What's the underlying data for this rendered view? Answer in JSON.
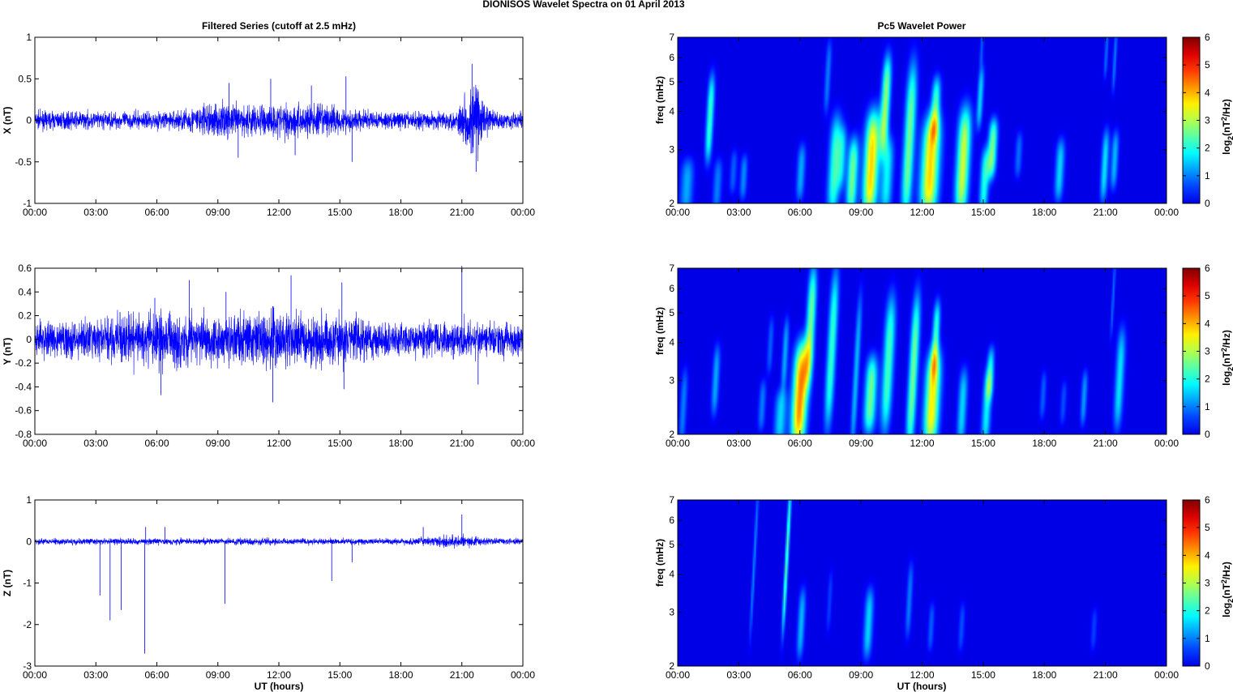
{
  "figure": {
    "title": "DIONISOS Wavelet Spectra on 01 April     2013",
    "left_title": "Filtered Series (cutoff at 2.5 mHz)",
    "right_title": "Pc5 Wavelet Power",
    "xlabel": "UT (hours)"
  },
  "colors": {
    "trace": "#0000ff",
    "axis": "#000000",
    "colormap": "jet"
  },
  "chart_data": [
    {
      "type": "line",
      "panel": "X",
      "ylabel": "X (nT)",
      "x_ticks": [
        "00:00",
        "03:00",
        "06:00",
        "09:00",
        "12:00",
        "15:00",
        "18:00",
        "21:00",
        "00:00"
      ],
      "xlim_hours": [
        0,
        24
      ],
      "ylim": [
        -1,
        1
      ],
      "y_ticks": [
        "-1",
        "-0.5",
        "0",
        "0.5",
        "1"
      ],
      "y_tick_values": [
        -1,
        -0.5,
        0,
        0.5,
        1
      ],
      "noise_amp": 0.07,
      "bursts": [
        {
          "t": 8.7,
          "w": 1.0,
          "a": 0.06
        },
        {
          "t": 11.5,
          "w": 1.5,
          "a": 0.06
        },
        {
          "t": 14.0,
          "w": 1.3,
          "a": 0.05
        },
        {
          "t": 21.6,
          "w": 0.45,
          "a": 0.22
        }
      ],
      "spikes": [
        {
          "t": 9.55,
          "v": 0.45
        },
        {
          "t": 11.6,
          "v": 0.5
        },
        {
          "t": 13.6,
          "v": 0.42
        },
        {
          "t": 15.3,
          "v": 0.53
        },
        {
          "t": 21.5,
          "v": 0.68
        },
        {
          "t": 21.7,
          "v": -0.62
        },
        {
          "t": 21.45,
          "v": -0.4
        },
        {
          "t": 15.6,
          "v": -0.5
        },
        {
          "t": 10.0,
          "v": -0.45
        },
        {
          "t": 12.8,
          "v": -0.42
        }
      ]
    },
    {
      "type": "line",
      "panel": "Y",
      "ylabel": "Y (nT)",
      "x_ticks": [
        "00:00",
        "03:00",
        "06:00",
        "09:00",
        "12:00",
        "15:00",
        "18:00",
        "21:00",
        "00:00"
      ],
      "xlim_hours": [
        0,
        24
      ],
      "ylim": [
        -0.8,
        0.6
      ],
      "y_ticks": [
        "-0.8",
        "-0.6",
        "-0.4",
        "-0.2",
        "0",
        "0.2",
        "0.4",
        "0.6"
      ],
      "y_tick_values": [
        -0.8,
        -0.6,
        -0.4,
        -0.2,
        0,
        0.2,
        0.4,
        0.6
      ],
      "noise_amp": 0.1,
      "bursts": [
        {
          "t": 6.5,
          "w": 2.2,
          "a": 0.06
        },
        {
          "t": 12.0,
          "w": 1.5,
          "a": 0.06
        },
        {
          "t": 15.2,
          "w": 1.0,
          "a": 0.04
        }
      ],
      "spikes": [
        {
          "t": 6.2,
          "v": -0.47
        },
        {
          "t": 7.6,
          "v": 0.5
        },
        {
          "t": 9.4,
          "v": 0.4
        },
        {
          "t": 11.7,
          "v": -0.53
        },
        {
          "t": 12.6,
          "v": 0.54
        },
        {
          "t": 15.1,
          "v": 0.48
        },
        {
          "t": 15.2,
          "v": -0.42
        },
        {
          "t": 21.0,
          "v": 0.62
        },
        {
          "t": 21.8,
          "v": -0.38
        },
        {
          "t": 5.9,
          "v": 0.35
        }
      ]
    },
    {
      "type": "line",
      "panel": "Z",
      "ylabel": "Z (nT)",
      "x_ticks": [
        "00:00",
        "03:00",
        "06:00",
        "09:00",
        "12:00",
        "15:00",
        "18:00",
        "21:00",
        "00:00"
      ],
      "xlim_hours": [
        0,
        24
      ],
      "ylim": [
        -3,
        1
      ],
      "y_ticks": [
        "-3",
        "-2",
        "-1",
        "0",
        "1"
      ],
      "y_tick_values": [
        -3,
        -2,
        -1,
        0,
        1
      ],
      "noise_amp": 0.05,
      "bursts": [
        {
          "t": 20.5,
          "w": 1.0,
          "a": 0.05
        }
      ],
      "spikes": [
        {
          "t": 3.2,
          "v": -1.3
        },
        {
          "t": 3.7,
          "v": -1.9
        },
        {
          "t": 4.25,
          "v": -1.65
        },
        {
          "t": 5.4,
          "v": -2.7
        },
        {
          "t": 5.45,
          "v": 0.35
        },
        {
          "t": 9.35,
          "v": -1.5
        },
        {
          "t": 14.6,
          "v": -0.95
        },
        {
          "t": 15.6,
          "v": -0.5
        },
        {
          "t": 21.0,
          "v": 0.65
        },
        {
          "t": 19.1,
          "v": 0.35
        },
        {
          "t": 6.4,
          "v": 0.35
        }
      ]
    },
    {
      "type": "heatmap",
      "panel": "X-power",
      "ylabel": "freq (mHz)",
      "x_ticks": [
        "00:00",
        "03:00",
        "06:00",
        "09:00",
        "12:00",
        "15:00",
        "18:00",
        "21:00",
        "00:00"
      ],
      "xlim_hours": [
        0,
        24
      ],
      "ylim_mhz": [
        2,
        7
      ],
      "y_scale": "log",
      "y_ticks": [
        "2",
        "3",
        "4",
        "5",
        "6",
        "7"
      ],
      "y_tick_values": [
        2,
        3,
        4,
        5,
        6,
        7
      ],
      "colorbar": {
        "label_pre": "log",
        "label_sub": "2",
        "label_mid": "(nT",
        "label_sup": "2",
        "label_post": "/Hz)",
        "ticks": [
          "0",
          "1",
          "2",
          "3",
          "4",
          "5",
          "6"
        ],
        "range": [
          0,
          6
        ]
      },
      "blobs": [
        {
          "t": 0.4,
          "f0": 2.0,
          "f1": 2.6,
          "v": 1.3,
          "w": 0.22
        },
        {
          "t": 1.5,
          "f0": 3.0,
          "f1": 4.8,
          "v": 2.2,
          "w": 0.12
        },
        {
          "t": 1.9,
          "f0": 2.0,
          "f1": 2.6,
          "v": 1.0,
          "w": 0.15
        },
        {
          "t": 2.7,
          "f0": 2.3,
          "f1": 2.8,
          "v": 0.8,
          "w": 0.12
        },
        {
          "t": 3.2,
          "f0": 2.2,
          "f1": 2.7,
          "v": 1.1,
          "w": 0.12
        },
        {
          "t": 6.0,
          "f0": 2.2,
          "f1": 2.9,
          "v": 1.3,
          "w": 0.14
        },
        {
          "t": 7.3,
          "f0": 4.3,
          "f1": 6.3,
          "v": 1.0,
          "w": 0.1
        },
        {
          "t": 7.6,
          "f0": 2.0,
          "f1": 3.5,
          "v": 2.2,
          "w": 0.2
        },
        {
          "t": 8.0,
          "f0": 2.4,
          "f1": 3.3,
          "v": 1.4,
          "w": 0.15
        },
        {
          "t": 8.5,
          "f0": 2.0,
          "f1": 3.0,
          "v": 2.6,
          "w": 0.18
        },
        {
          "t": 9.4,
          "f0": 2.0,
          "f1": 3.6,
          "v": 3.8,
          "w": 0.25
        },
        {
          "t": 10.1,
          "f0": 3.2,
          "f1": 5.5,
          "v": 2.8,
          "w": 0.15
        },
        {
          "t": 10.2,
          "f0": 2.0,
          "f1": 3.0,
          "v": 1.8,
          "w": 0.2
        },
        {
          "t": 11.2,
          "f0": 2.0,
          "f1": 5.0,
          "v": 2.6,
          "w": 0.18
        },
        {
          "t": 12.3,
          "f0": 2.0,
          "f1": 3.5,
          "v": 3.8,
          "w": 0.3
        },
        {
          "t": 12.6,
          "f0": 3.5,
          "f1": 4.8,
          "v": 2.2,
          "w": 0.15
        },
        {
          "t": 13.9,
          "f0": 2.0,
          "f1": 3.7,
          "v": 3.2,
          "w": 0.22
        },
        {
          "t": 14.8,
          "f0": 3.8,
          "f1": 5.2,
          "v": 1.6,
          "w": 0.1
        },
        {
          "t": 15.0,
          "f0": 2.0,
          "f1": 2.8,
          "v": 2.0,
          "w": 0.15
        },
        {
          "t": 15.4,
          "f0": 2.6,
          "f1": 3.5,
          "v": 2.6,
          "w": 0.15
        },
        {
          "t": 16.7,
          "f0": 2.6,
          "f1": 3.2,
          "v": 0.9,
          "w": 0.12
        },
        {
          "t": 18.7,
          "f0": 2.2,
          "f1": 3.0,
          "v": 1.6,
          "w": 0.15
        },
        {
          "t": 20.9,
          "f0": 2.2,
          "f1": 3.2,
          "v": 1.7,
          "w": 0.12
        },
        {
          "t": 21.4,
          "f0": 2.4,
          "f1": 3.2,
          "v": 1.4,
          "w": 0.12
        },
        {
          "t": 21.0,
          "f0": 5.5,
          "f1": 7.0,
          "v": 0.9,
          "w": 0.06
        },
        {
          "t": 21.4,
          "f0": 5.0,
          "f1": 7.0,
          "v": 1.0,
          "w": 0.06
        },
        {
          "t": 14.9,
          "f0": 6.0,
          "f1": 7.0,
          "v": 0.8,
          "w": 0.06
        }
      ]
    },
    {
      "type": "heatmap",
      "panel": "Y-power",
      "ylabel": "freq (mHz)",
      "x_ticks": [
        "00:00",
        "03:00",
        "06:00",
        "09:00",
        "12:00",
        "15:00",
        "18:00",
        "21:00",
        "00:00"
      ],
      "xlim_hours": [
        0,
        24
      ],
      "ylim_mhz": [
        2,
        7
      ],
      "y_scale": "log",
      "y_ticks": [
        "2",
        "3",
        "4",
        "5",
        "6",
        "7"
      ],
      "y_tick_values": [
        2,
        3,
        4,
        5,
        6,
        7
      ],
      "colorbar": {
        "label_pre": "log",
        "label_sub": "2",
        "label_mid": "(nT",
        "label_sup": "2",
        "label_post": "/Hz)",
        "ticks": [
          "0",
          "1",
          "2",
          "3",
          "4",
          "5",
          "6"
        ],
        "range": [
          0,
          6
        ]
      },
      "blobs": [
        {
          "t": 0.2,
          "f0": 2.0,
          "f1": 3.0,
          "v": 1.0,
          "w": 0.12
        },
        {
          "t": 1.8,
          "f0": 2.5,
          "f1": 3.6,
          "v": 1.3,
          "w": 0.12
        },
        {
          "t": 4.1,
          "f0": 2.2,
          "f1": 2.8,
          "v": 1.0,
          "w": 0.12
        },
        {
          "t": 4.5,
          "f0": 3.4,
          "f1": 4.5,
          "v": 0.8,
          "w": 0.1
        },
        {
          "t": 5.0,
          "f0": 2.0,
          "f1": 2.6,
          "v": 1.6,
          "w": 0.2
        },
        {
          "t": 5.2,
          "f0": 3.0,
          "f1": 4.4,
          "v": 1.3,
          "w": 0.1
        },
        {
          "t": 5.9,
          "f0": 2.0,
          "f1": 3.6,
          "v": 4.3,
          "w": 0.25
        },
        {
          "t": 6.4,
          "f0": 3.2,
          "f1": 6.3,
          "v": 2.6,
          "w": 0.15
        },
        {
          "t": 7.4,
          "f0": 2.4,
          "f1": 6.0,
          "v": 2.2,
          "w": 0.15
        },
        {
          "t": 8.6,
          "f0": 2.0,
          "f1": 5.0,
          "v": 1.4,
          "w": 0.1
        },
        {
          "t": 9.4,
          "f0": 2.2,
          "f1": 3.3,
          "v": 2.6,
          "w": 0.2
        },
        {
          "t": 10.2,
          "f0": 2.3,
          "f1": 5.0,
          "v": 2.3,
          "w": 0.18
        },
        {
          "t": 11.4,
          "f0": 2.0,
          "f1": 5.0,
          "v": 2.6,
          "w": 0.15
        },
        {
          "t": 12.4,
          "f0": 2.0,
          "f1": 3.4,
          "v": 3.6,
          "w": 0.25
        },
        {
          "t": 12.6,
          "f0": 3.4,
          "f1": 5.0,
          "v": 2.2,
          "w": 0.12
        },
        {
          "t": 13.9,
          "f0": 2.0,
          "f1": 3.0,
          "v": 1.6,
          "w": 0.15
        },
        {
          "t": 15.1,
          "f0": 2.0,
          "f1": 3.0,
          "v": 1.8,
          "w": 0.15
        },
        {
          "t": 15.3,
          "f0": 2.8,
          "f1": 3.6,
          "v": 1.7,
          "w": 0.12
        },
        {
          "t": 17.9,
          "f0": 2.4,
          "f1": 3.0,
          "v": 0.8,
          "w": 0.1
        },
        {
          "t": 18.9,
          "f0": 2.3,
          "f1": 2.8,
          "v": 0.7,
          "w": 0.1
        },
        {
          "t": 19.9,
          "f0": 2.3,
          "f1": 3.0,
          "v": 1.2,
          "w": 0.1
        },
        {
          "t": 21.6,
          "f0": 2.3,
          "f1": 4.0,
          "v": 1.7,
          "w": 0.15
        },
        {
          "t": 21.3,
          "f0": 4.5,
          "f1": 7.0,
          "v": 0.9,
          "w": 0.05
        }
      ]
    },
    {
      "type": "heatmap",
      "panel": "Z-power",
      "ylabel": "freq (mHz)",
      "x_ticks": [
        "00:00",
        "03:00",
        "06:00",
        "09:00",
        "12:00",
        "15:00",
        "18:00",
        "21:00",
        "00:00"
      ],
      "xlim_hours": [
        0,
        24
      ],
      "ylim_mhz": [
        2,
        7
      ],
      "y_scale": "log",
      "y_ticks": [
        "2",
        "3",
        "4",
        "5",
        "6",
        "7"
      ],
      "y_tick_values": [
        2,
        3,
        4,
        5,
        6,
        7
      ],
      "colorbar": {
        "label_pre": "log",
        "label_sub": "2",
        "label_mid": "(nT",
        "label_sup": "2",
        "label_post": "/Hz)",
        "ticks": [
          "0",
          "1",
          "2",
          "3",
          "4",
          "5",
          "6"
        ],
        "range": [
          0,
          6
        ]
      },
      "blobs": [
        {
          "t": 3.6,
          "f0": 2.8,
          "f1": 7.0,
          "v": 1.1,
          "w": 0.05
        },
        {
          "t": 5.2,
          "f0": 2.9,
          "f1": 7.0,
          "v": 2.4,
          "w": 0.06
        },
        {
          "t": 6.0,
          "f0": 2.3,
          "f1": 3.3,
          "v": 1.4,
          "w": 0.12
        },
        {
          "t": 7.4,
          "f0": 2.8,
          "f1": 3.8,
          "v": 0.6,
          "w": 0.08
        },
        {
          "t": 9.3,
          "f0": 2.3,
          "f1": 3.3,
          "v": 1.6,
          "w": 0.15
        },
        {
          "t": 11.3,
          "f0": 2.7,
          "f1": 4.0,
          "v": 1.0,
          "w": 0.1
        },
        {
          "t": 12.4,
          "f0": 2.4,
          "f1": 3.0,
          "v": 0.8,
          "w": 0.1
        },
        {
          "t": 13.9,
          "f0": 2.4,
          "f1": 3.0,
          "v": 0.7,
          "w": 0.1
        },
        {
          "t": 20.4,
          "f0": 2.4,
          "f1": 2.9,
          "v": 0.6,
          "w": 0.1
        }
      ]
    }
  ]
}
